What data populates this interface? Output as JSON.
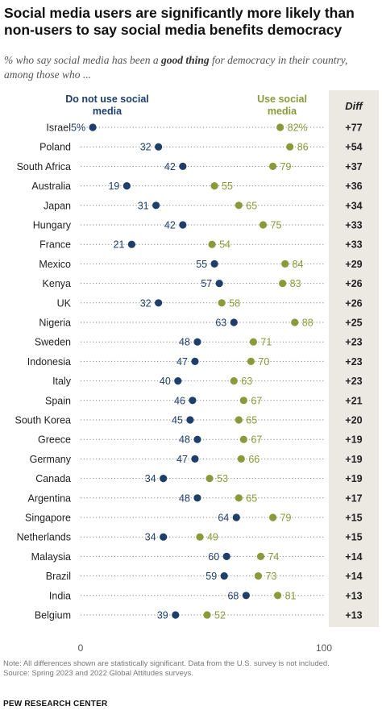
{
  "title": "Social media users are significantly more likely than non-users to say social media benefits democracy",
  "subtitle_pre": "% who say social media has been a ",
  "subtitle_bold": "good thing",
  "subtitle_post": " for democracy in their country, among those who ...",
  "note": "Note: All differences shown are statistically significant. Data from the U.S. survey is not included.",
  "source": "Source: Spring 2023 and 2022 Global Attitudes surveys.",
  "brand": "PEW RESEARCH CENTER",
  "colors": {
    "nonusers": "#1f3f6b",
    "users": "#8a9a3a",
    "dots_line": "#888888"
  },
  "chart_data": {
    "type": "dot",
    "xlim": [
      0,
      100
    ],
    "x_tick_labels": [
      "0",
      "100"
    ],
    "diff_header": "Diff",
    "categories": [
      "Israel",
      "Poland",
      "South Africa",
      "Australia",
      "Japan",
      "Hungary",
      "France",
      "Mexico",
      "Kenya",
      "UK",
      "Nigeria",
      "Sweden",
      "Indonesia",
      "Italy",
      "Spain",
      "South Korea",
      "Greece",
      "Germany",
      "Canada",
      "Argentina",
      "Singapore",
      "Netherlands",
      "Malaysia",
      "Brazil",
      "India",
      "Belgium"
    ],
    "series": [
      {
        "name": "Do not use social media",
        "values": [
          5,
          32,
          42,
          19,
          31,
          42,
          21,
          55,
          57,
          32,
          63,
          48,
          47,
          40,
          46,
          45,
          48,
          47,
          34,
          48,
          64,
          34,
          60,
          59,
          68,
          39
        ],
        "labels": [
          "5%",
          "32",
          "42",
          "19",
          "31",
          "42",
          "21",
          "55",
          "57",
          "32",
          "63",
          "48",
          "47",
          "40",
          "46",
          "45",
          "48",
          "47",
          "34",
          "48",
          "64",
          "34",
          "60",
          "59",
          "68",
          "39"
        ]
      },
      {
        "name": "Use social media",
        "values": [
          82,
          86,
          79,
          55,
          65,
          75,
          54,
          84,
          83,
          58,
          88,
          71,
          70,
          63,
          67,
          65,
          67,
          66,
          53,
          65,
          79,
          49,
          74,
          73,
          81,
          52
        ],
        "labels": [
          "82%",
          "86",
          "79",
          "55",
          "65",
          "75",
          "54",
          "84",
          "83",
          "58",
          "88",
          "71",
          "70",
          "63",
          "67",
          "65",
          "67",
          "66",
          "53",
          "65",
          "79",
          "49",
          "74",
          "73",
          "81",
          "52"
        ]
      }
    ],
    "diff": [
      "+77",
      "+54",
      "+37",
      "+36",
      "+34",
      "+33",
      "+33",
      "+29",
      "+26",
      "+26",
      "+25",
      "+23",
      "+23",
      "+23",
      "+21",
      "+20",
      "+19",
      "+19",
      "+19",
      "+17",
      "+15",
      "+15",
      "+14",
      "+14",
      "+13",
      "+13"
    ]
  }
}
